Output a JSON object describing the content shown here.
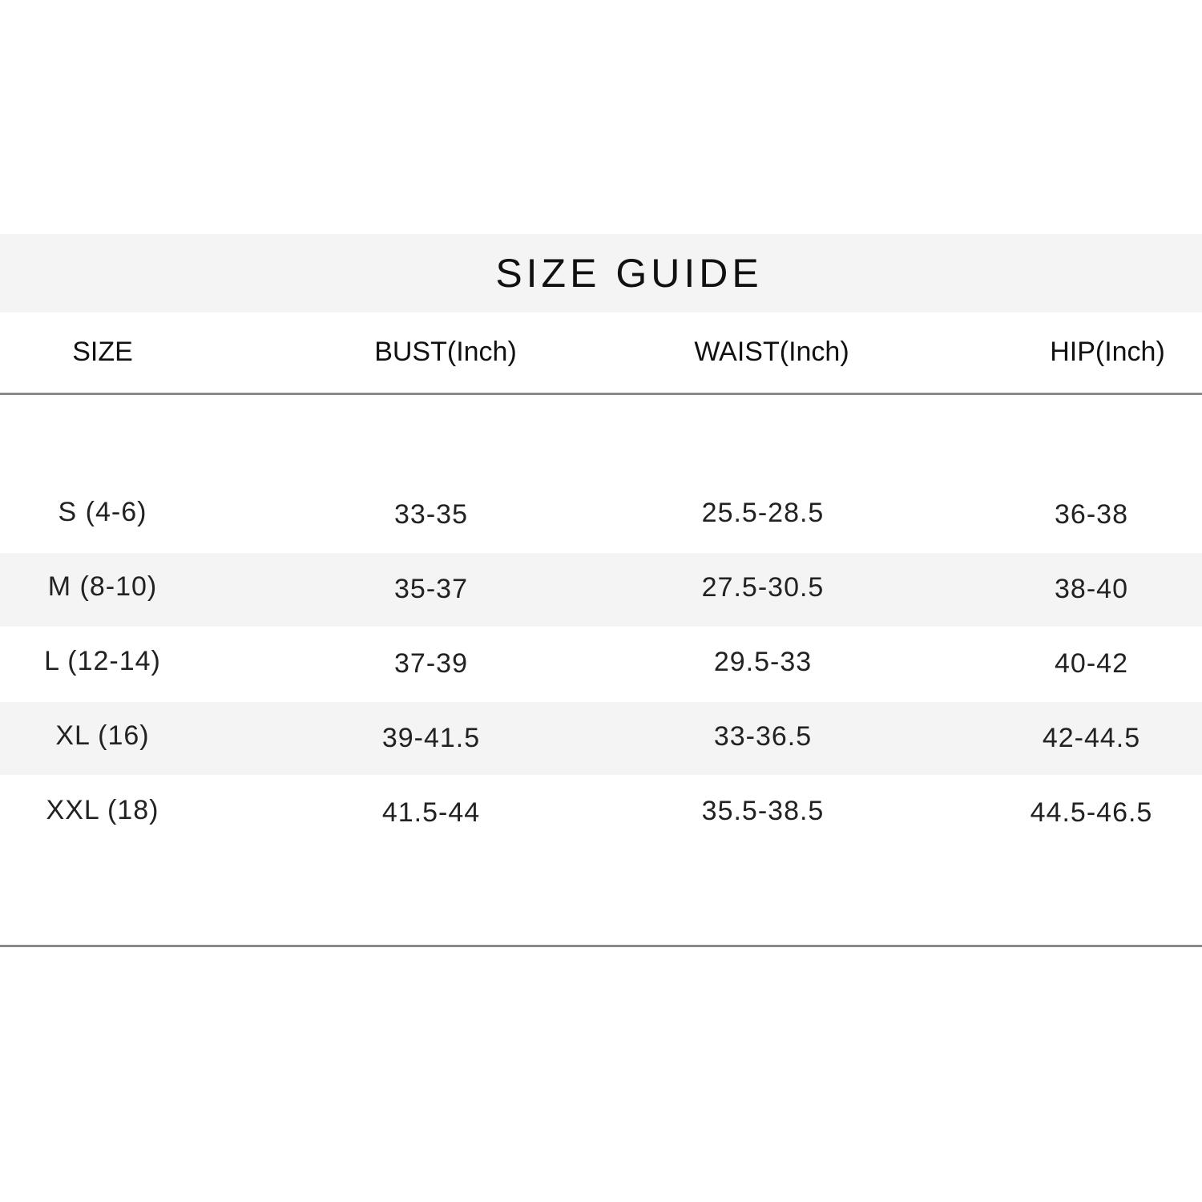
{
  "title": "SIZE GUIDE",
  "columns": [
    "SIZE",
    "BUST(Inch)",
    "WAIST(Inch)",
    "HIP(Inch)"
  ],
  "rows": [
    [
      "S (4-6)",
      "33-35",
      "25.5-28.5",
      "36-38"
    ],
    [
      "M (8-10)",
      "35-37",
      "27.5-30.5",
      "38-40"
    ],
    [
      "L (12-14)",
      "37-39",
      "29.5-33",
      "40-42"
    ],
    [
      "XL (16)",
      "39-41.5",
      "33-36.5",
      "42-44.5"
    ],
    [
      "XXL (18)",
      "41.5-44",
      "35.5-38.5",
      "44.5-46.5"
    ]
  ]
}
